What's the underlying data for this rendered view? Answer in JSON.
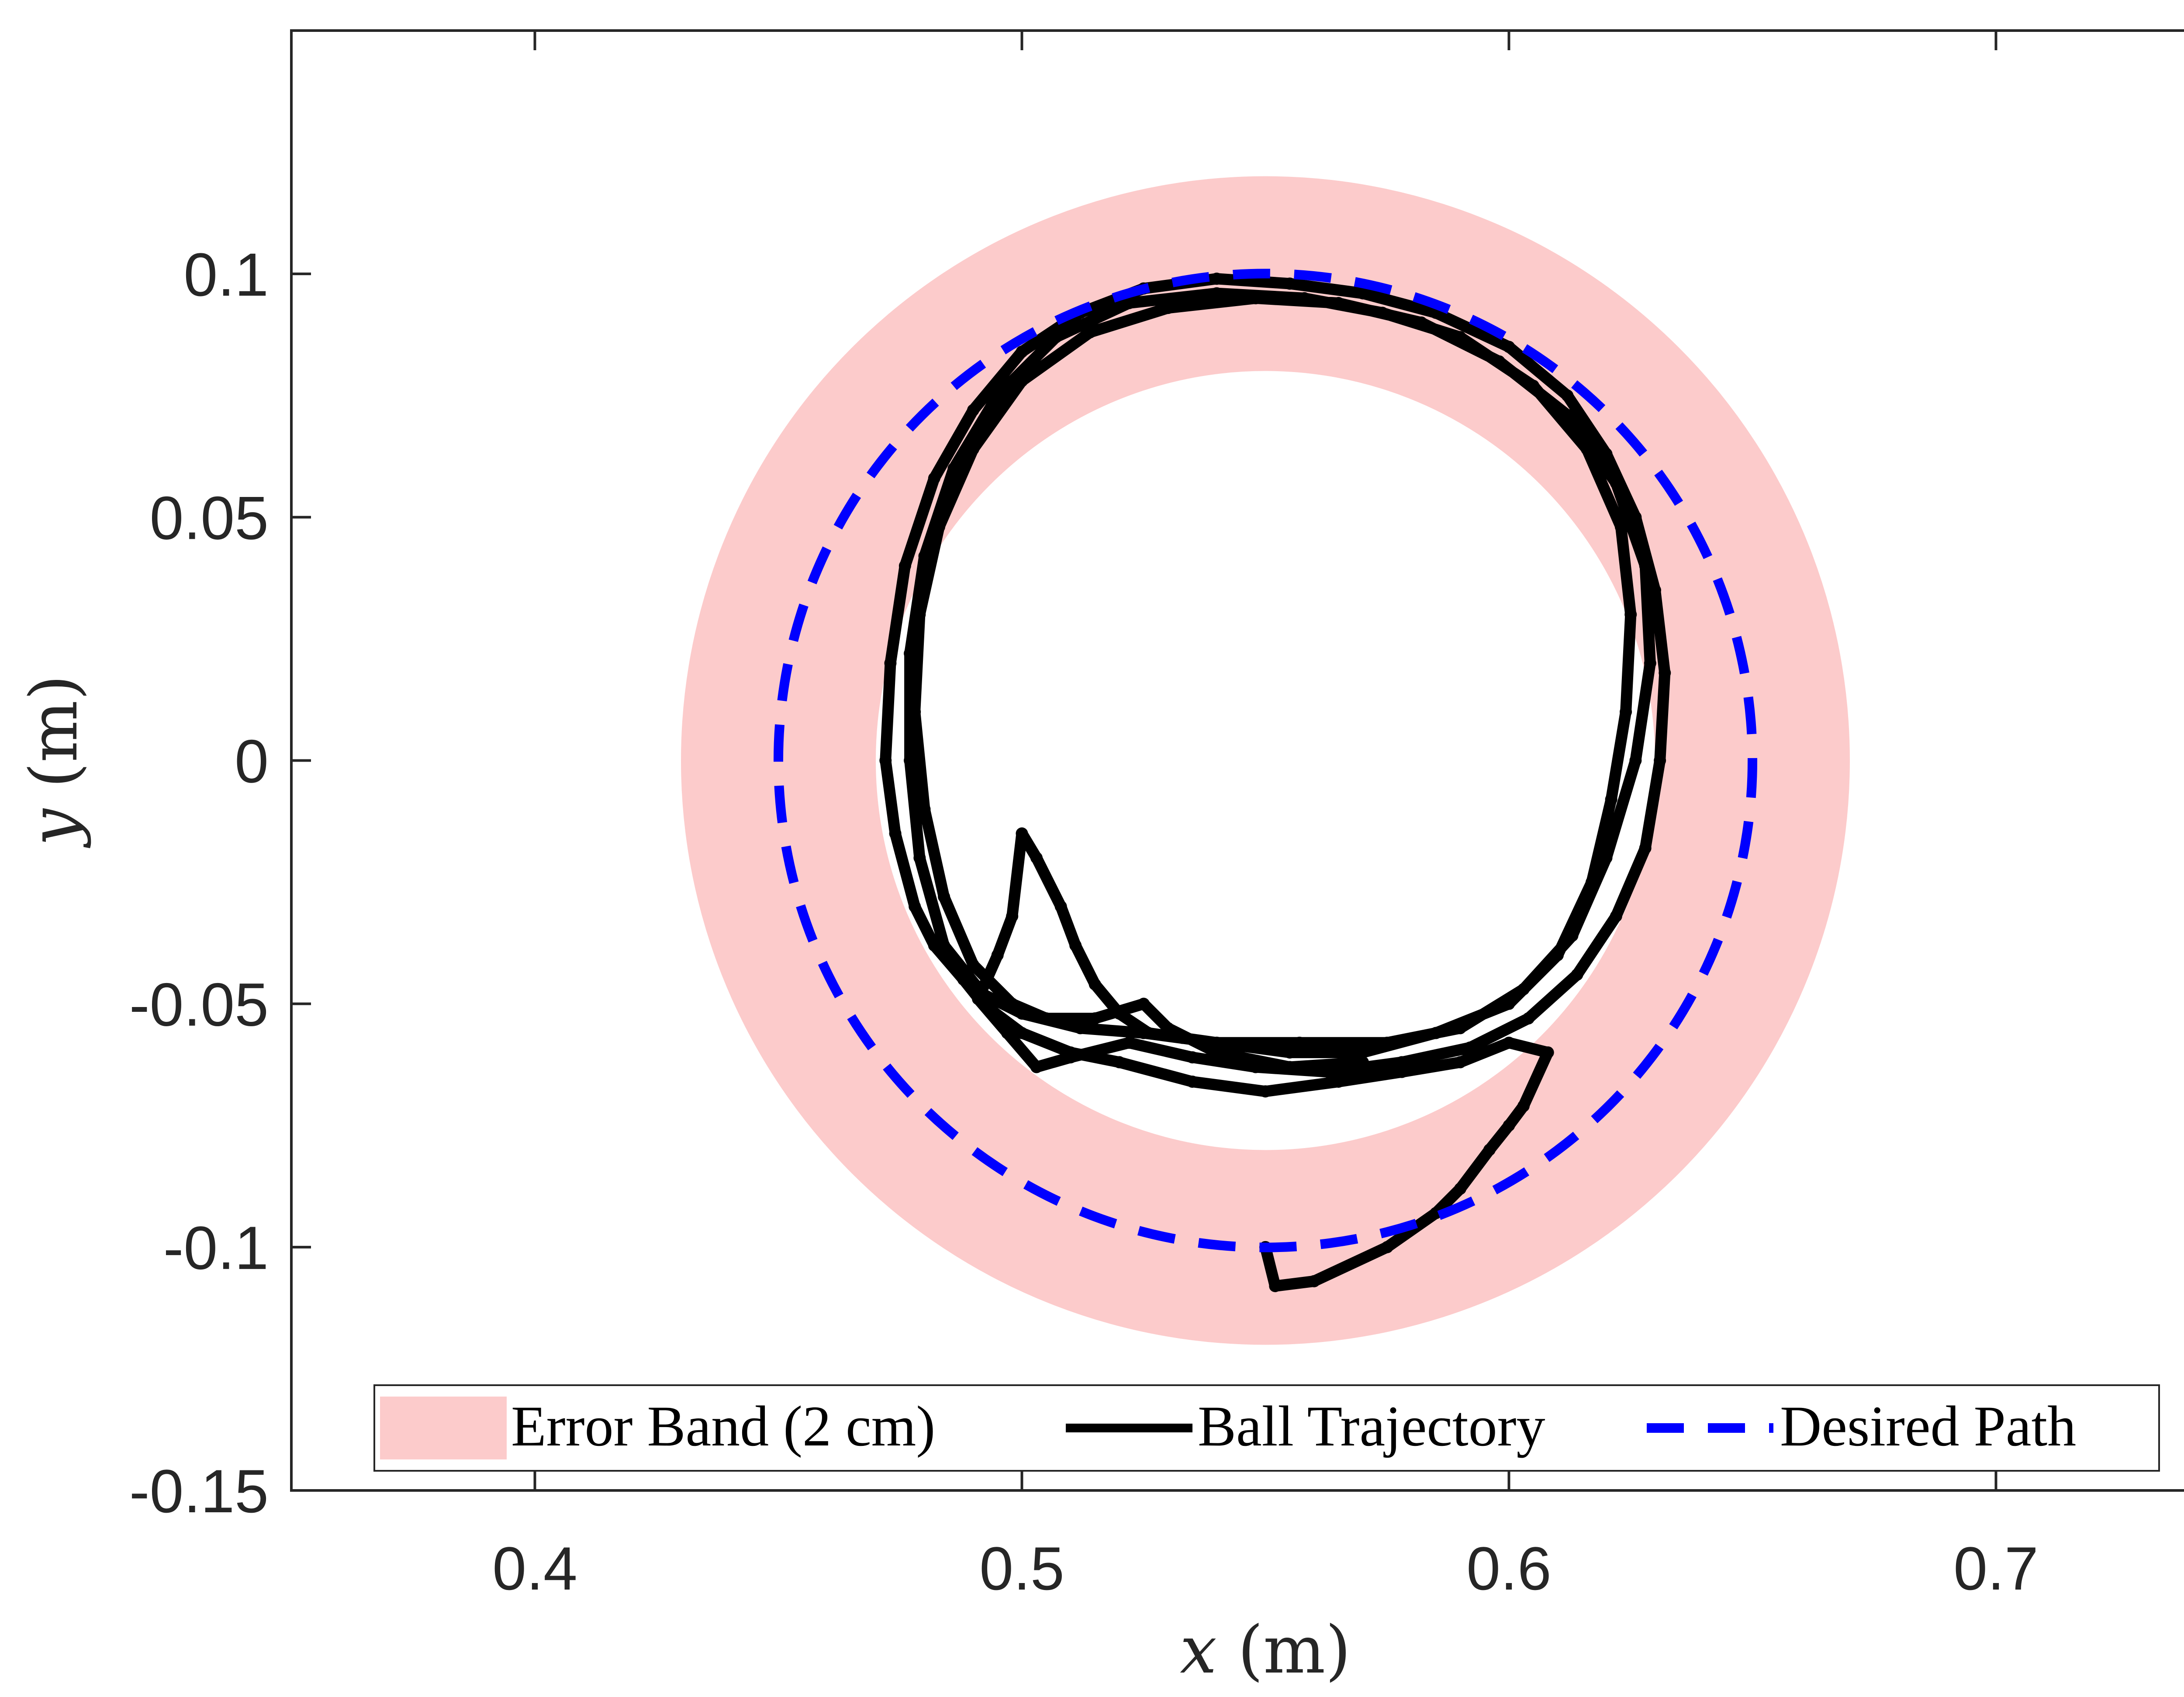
{
  "chart_data": {
    "type": "line",
    "xlabel": {
      "var": "x",
      "unit": " (m)"
    },
    "ylabel": {
      "var": "y",
      "unit": " (m)"
    },
    "xlim": [
      0.35,
      0.75
    ],
    "ylim": [
      -0.15,
      0.15
    ],
    "xticks": [
      0.4,
      0.5,
      0.6,
      0.7
    ],
    "xtick_labels": [
      "0.4",
      "0.5",
      "0.6",
      "0.7"
    ],
    "yticks": [
      -0.15,
      -0.1,
      -0.05,
      0,
      0.05,
      0.1
    ],
    "ytick_labels": [
      "-0.15",
      "-0.1",
      "-0.05",
      "0",
      "0.05",
      "0.1"
    ],
    "grid": false,
    "legend_position": "bottom",
    "colors": {
      "band": "#fccbcb",
      "trajectory": "#000000",
      "desired": "#0000ff"
    },
    "series": [
      {
        "name": "Error Band (2 cm)",
        "kind": "band",
        "center": [
          0.55,
          0.0
        ],
        "inner_radius": 0.08,
        "outer_radius": 0.12
      },
      {
        "name": "Ball Trajectory",
        "kind": "line",
        "points": [
          [
            0.55,
            -0.1
          ],
          [
            0.552,
            -0.108
          ],
          [
            0.56,
            -0.107
          ],
          [
            0.575,
            -0.1
          ],
          [
            0.585,
            -0.093
          ],
          [
            0.59,
            -0.088
          ],
          [
            0.596,
            -0.08
          ],
          [
            0.6,
            -0.075
          ],
          [
            0.603,
            -0.071
          ],
          [
            0.608,
            -0.06
          ],
          [
            0.6,
            -0.058
          ],
          [
            0.59,
            -0.062
          ],
          [
            0.578,
            -0.064
          ],
          [
            0.565,
            -0.066
          ],
          [
            0.55,
            -0.068
          ],
          [
            0.535,
            -0.066
          ],
          [
            0.52,
            -0.062
          ],
          [
            0.51,
            -0.06
          ],
          [
            0.5,
            -0.056
          ],
          [
            0.492,
            -0.05
          ],
          [
            0.488,
            -0.045
          ],
          [
            0.482,
            -0.038
          ],
          [
            0.478,
            -0.03
          ],
          [
            0.474,
            -0.015
          ],
          [
            0.472,
            0.0
          ],
          [
            0.473,
            0.02
          ],
          [
            0.476,
            0.04
          ],
          [
            0.482,
            0.058
          ],
          [
            0.49,
            0.072
          ],
          [
            0.5,
            0.084
          ],
          [
            0.512,
            0.092
          ],
          [
            0.525,
            0.097
          ],
          [
            0.54,
            0.099
          ],
          [
            0.555,
            0.098
          ],
          [
            0.57,
            0.096
          ],
          [
            0.585,
            0.092
          ],
          [
            0.6,
            0.085
          ],
          [
            0.612,
            0.075
          ],
          [
            0.62,
            0.063
          ],
          [
            0.626,
            0.05
          ],
          [
            0.63,
            0.035
          ],
          [
            0.632,
            0.018
          ],
          [
            0.631,
            0.0
          ],
          [
            0.628,
            -0.018
          ],
          [
            0.622,
            -0.032
          ],
          [
            0.614,
            -0.044
          ],
          [
            0.604,
            -0.053
          ],
          [
            0.592,
            -0.059
          ],
          [
            0.578,
            -0.062
          ],
          [
            0.563,
            -0.064
          ],
          [
            0.548,
            -0.063
          ],
          [
            0.535,
            -0.061
          ],
          [
            0.522,
            -0.058
          ],
          [
            0.51,
            -0.061
          ],
          [
            0.503,
            -0.063
          ],
          [
            0.497,
            -0.056
          ],
          [
            0.491,
            -0.049
          ],
          [
            0.495,
            -0.04
          ],
          [
            0.498,
            -0.032
          ],
          [
            0.5,
            -0.015
          ],
          [
            0.503,
            -0.02
          ],
          [
            0.508,
            -0.03
          ],
          [
            0.511,
            -0.038
          ],
          [
            0.515,
            -0.046
          ],
          [
            0.52,
            -0.052
          ],
          [
            0.526,
            -0.056
          ],
          [
            0.533,
            -0.057
          ],
          [
            0.54,
            -0.058
          ],
          [
            0.555,
            -0.06
          ],
          [
            0.57,
            -0.06
          ],
          [
            0.585,
            -0.056
          ],
          [
            0.6,
            -0.05
          ],
          [
            0.61,
            -0.04
          ],
          [
            0.617,
            -0.025
          ],
          [
            0.621,
            -0.008
          ],
          [
            0.624,
            0.01
          ],
          [
            0.625,
            0.03
          ],
          [
            0.623,
            0.048
          ],
          [
            0.616,
            0.064
          ],
          [
            0.605,
            0.077
          ],
          [
            0.59,
            0.087
          ],
          [
            0.574,
            0.092
          ],
          [
            0.558,
            0.095
          ],
          [
            0.54,
            0.096
          ],
          [
            0.522,
            0.094
          ],
          [
            0.507,
            0.087
          ],
          [
            0.495,
            0.075
          ],
          [
            0.486,
            0.06
          ],
          [
            0.48,
            0.042
          ],
          [
            0.477,
            0.022
          ],
          [
            0.477,
            0.0
          ],
          [
            0.479,
            -0.02
          ],
          [
            0.484,
            -0.038
          ],
          [
            0.492,
            -0.048
          ],
          [
            0.5,
            -0.052
          ],
          [
            0.512,
            -0.055
          ],
          [
            0.525,
            -0.056
          ],
          [
            0.54,
            -0.058
          ],
          [
            0.557,
            -0.058
          ],
          [
            0.575,
            -0.058
          ],
          [
            0.59,
            -0.055
          ],
          [
            0.603,
            -0.047
          ],
          [
            0.613,
            -0.036
          ],
          [
            0.62,
            -0.02
          ],
          [
            0.626,
            0.0
          ],
          [
            0.629,
            0.02
          ],
          [
            0.628,
            0.04
          ],
          [
            0.622,
            0.057
          ],
          [
            0.612,
            0.071
          ],
          [
            0.598,
            0.082
          ],
          [
            0.582,
            0.09
          ],
          [
            0.565,
            0.094
          ],
          [
            0.548,
            0.095
          ],
          [
            0.53,
            0.093
          ],
          [
            0.514,
            0.088
          ],
          [
            0.5,
            0.078
          ],
          [
            0.49,
            0.064
          ],
          [
            0.483,
            0.048
          ],
          [
            0.479,
            0.03
          ],
          [
            0.478,
            0.01
          ],
          [
            0.48,
            -0.01
          ],
          [
            0.484,
            -0.028
          ],
          [
            0.49,
            -0.042
          ],
          [
            0.498,
            -0.05
          ],
          [
            0.505,
            -0.053
          ],
          [
            0.515,
            -0.053
          ],
          [
            0.525,
            -0.05
          ],
          [
            0.53,
            -0.055
          ],
          [
            0.54,
            -0.06
          ],
          [
            0.555,
            -0.063
          ],
          [
            0.57,
            -0.062
          ]
        ]
      },
      {
        "name": "Desired Path",
        "kind": "dashed-circle",
        "center": [
          0.55,
          0.0
        ],
        "radius": 0.1
      }
    ]
  }
}
